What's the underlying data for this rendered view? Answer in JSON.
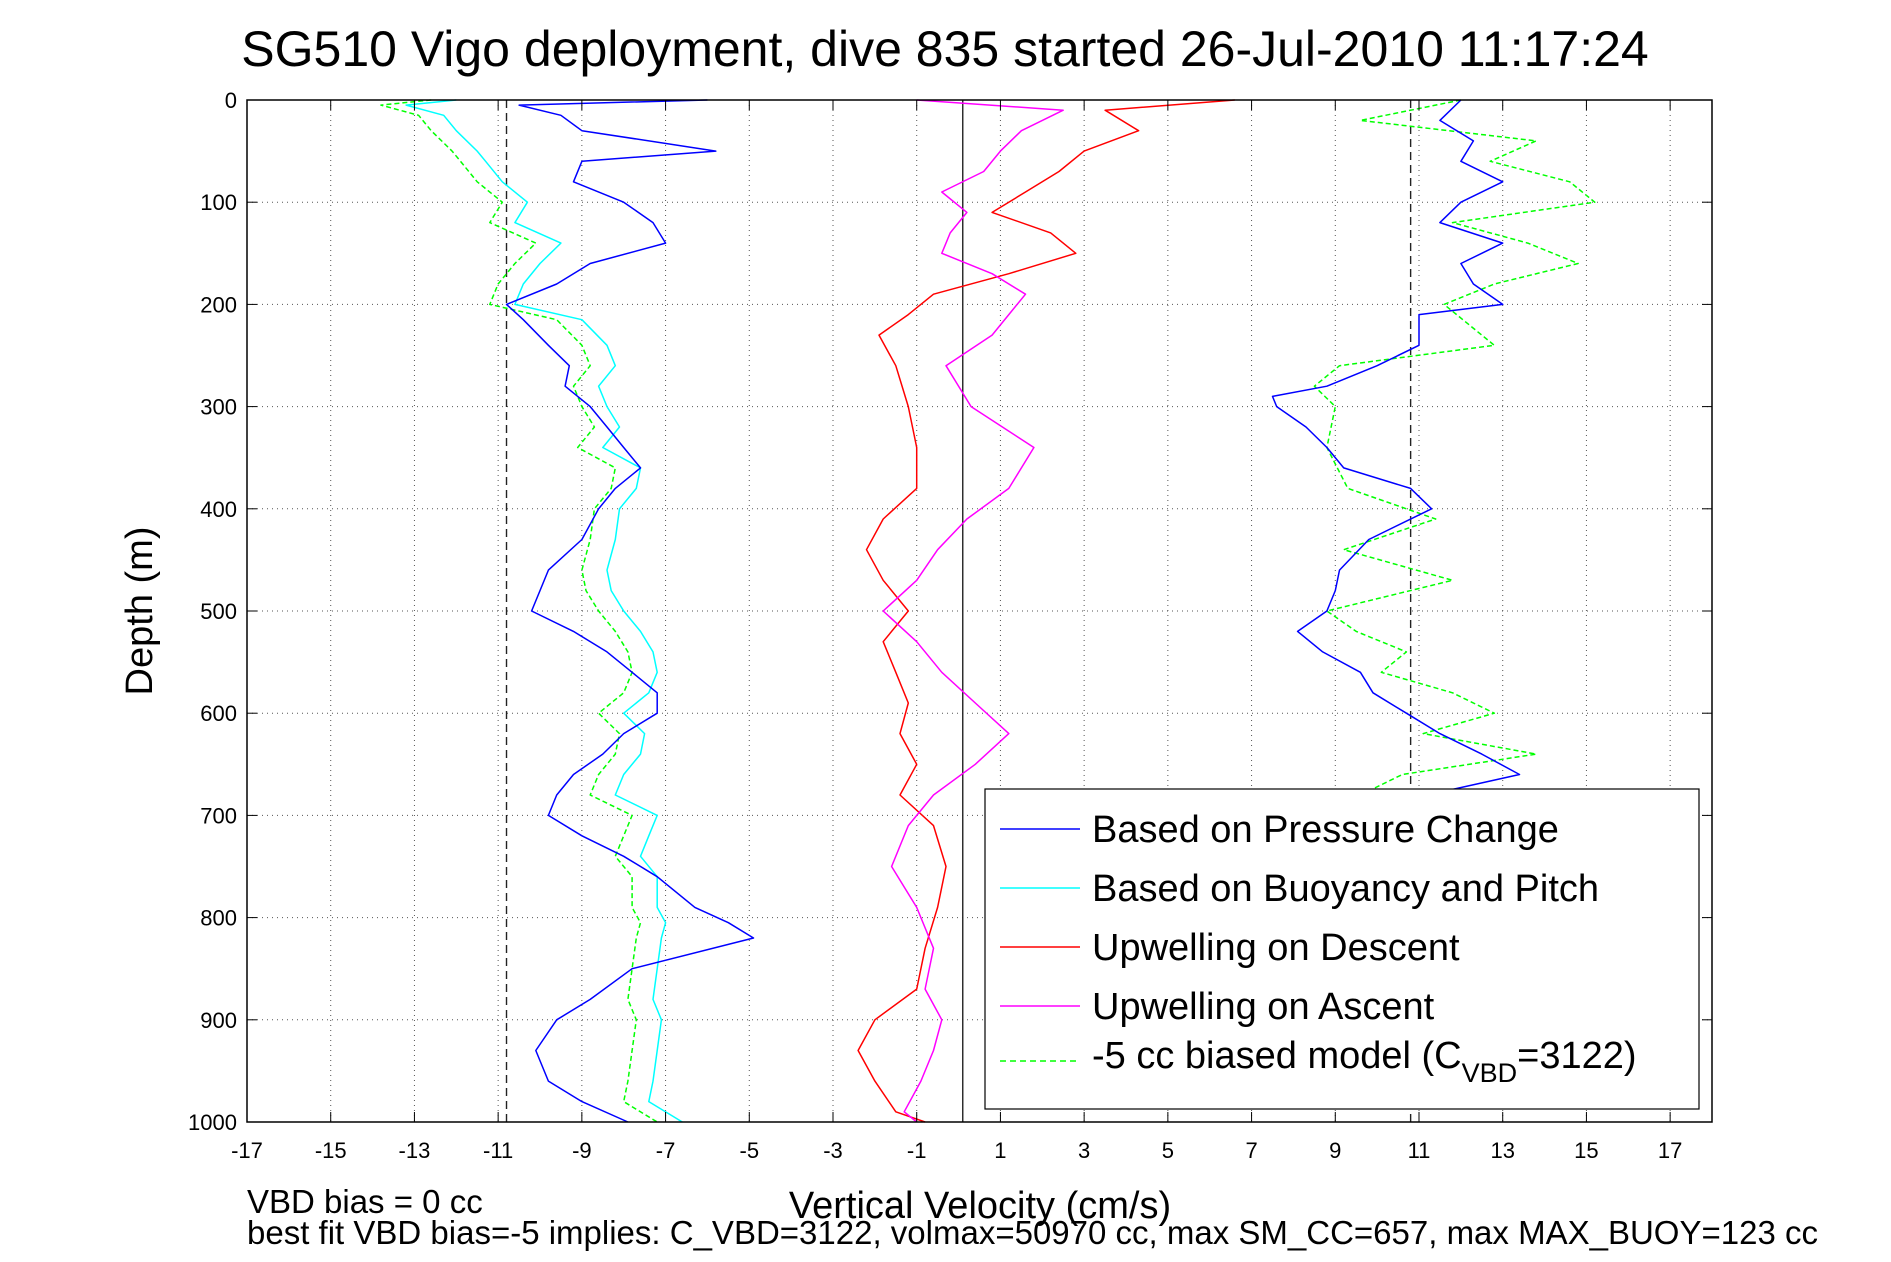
{
  "chart_data": {
    "type": "line",
    "title": "SG510 Vigo deployment, dive 835 started 26-Jul-2010 11:17:24",
    "xlabel": "Vertical Velocity (cm/s)",
    "ylabel": "Depth (m)",
    "xlim": [
      -17,
      18
    ],
    "ylim": [
      0,
      1000
    ],
    "y_reversed": true,
    "grid": true,
    "x_ticks": [
      -17,
      -15,
      -13,
      -11,
      -9,
      -7,
      -5,
      -3,
      -1,
      1,
      3,
      5,
      7,
      9,
      11,
      13,
      15,
      17
    ],
    "y_ticks": [
      0,
      100,
      200,
      300,
      400,
      500,
      600,
      700,
      800,
      900,
      1000
    ],
    "reference_lines": [
      {
        "x": -10.8,
        "style": "dashed"
      },
      {
        "x": 0.1,
        "style": "solid"
      },
      {
        "x": 10.8,
        "style": "dashed"
      }
    ],
    "legend_position": "bottom-right",
    "series": [
      {
        "name": "Based on Pressure Change",
        "color": "#0000ff",
        "style": "solid",
        "depth": [
          0,
          5,
          15,
          30,
          50,
          60,
          80,
          100,
          120,
          140,
          160,
          180,
          200,
          215,
          240,
          260,
          280,
          300,
          320,
          340,
          360,
          380,
          400,
          430,
          460,
          480,
          500,
          520,
          540,
          560,
          580,
          600,
          620,
          640,
          660,
          680,
          700,
          720,
          740,
          760,
          790,
          805,
          820,
          850,
          880,
          900,
          930,
          960,
          980,
          1000
        ],
        "velocity": [
          -6,
          -10.5,
          -9.5,
          -9,
          -5.8,
          -9,
          -9.2,
          -8,
          -7.3,
          -7,
          -8.8,
          -9.6,
          -10.8,
          -10.4,
          -9.8,
          -9.3,
          -9.4,
          -8.8,
          -8.4,
          -8,
          -7.6,
          -8.2,
          -8.6,
          -9,
          -9.8,
          -10,
          -10.2,
          -9.2,
          -8.4,
          -7.8,
          -7.2,
          -7.2,
          -8,
          -8.5,
          -9.2,
          -9.6,
          -9.8,
          -9,
          -8,
          -7.2,
          -6.3,
          -5.5,
          -4.9,
          -7.8,
          -8.8,
          -9.6,
          -10.1,
          -9.8,
          -9,
          -7.9
        ]
      },
      {
        "name": "Based on Buoyancy and Pitch",
        "color": "#00ffff",
        "style": "solid",
        "depth": [
          0,
          5,
          15,
          30,
          50,
          60,
          80,
          100,
          120,
          140,
          160,
          180,
          200,
          215,
          240,
          260,
          280,
          300,
          320,
          340,
          360,
          380,
          400,
          430,
          460,
          480,
          500,
          520,
          540,
          560,
          580,
          600,
          620,
          640,
          660,
          680,
          700,
          720,
          740,
          760,
          790,
          805,
          820,
          850,
          880,
          900,
          930,
          960,
          980,
          1000
        ],
        "velocity": [
          -12,
          -13.2,
          -12.3,
          -12,
          -11.5,
          -11.3,
          -10.9,
          -10.3,
          -10.6,
          -9.5,
          -10,
          -10.4,
          -10.6,
          -9,
          -8.4,
          -8.2,
          -8.6,
          -8.4,
          -8.1,
          -8.5,
          -7.6,
          -7.7,
          -8.1,
          -8.2,
          -8.4,
          -8.3,
          -8,
          -7.6,
          -7.3,
          -7.2,
          -7.4,
          -8,
          -7.5,
          -7.6,
          -8,
          -8.2,
          -7.2,
          -7.4,
          -7.6,
          -7.2,
          -7.2,
          -7,
          -7.1,
          -7.2,
          -7.3,
          -7.1,
          -7.2,
          -7.3,
          -7.4,
          -6.6
        ]
      },
      {
        "name": "Upwelling on Descent",
        "color": "#ff0000",
        "style": "solid",
        "depth": [
          0,
          10,
          30,
          50,
          70,
          90,
          110,
          130,
          150,
          170,
          190,
          210,
          230,
          260,
          300,
          340,
          380,
          410,
          440,
          470,
          500,
          530,
          560,
          590,
          620,
          650,
          680,
          710,
          750,
          790,
          830,
          870,
          900,
          930,
          960,
          990,
          1000
        ],
        "velocity": [
          6.6,
          3.5,
          4.3,
          3,
          2.4,
          1.6,
          0.8,
          2.2,
          2.8,
          1.2,
          -0.6,
          -1.2,
          -1.9,
          -1.5,
          -1.2,
          -1.0,
          -1.0,
          -1.8,
          -2.2,
          -1.8,
          -1.2,
          -1.8,
          -1.5,
          -1.2,
          -1.4,
          -1.0,
          -1.4,
          -0.6,
          -0.3,
          -0.5,
          -0.8,
          -1.0,
          -2.0,
          -2.4,
          -2.0,
          -1.5,
          -0.8
        ]
      },
      {
        "name": "Upwelling on Ascent",
        "color": "#ff00ff",
        "style": "solid",
        "depth": [
          0,
          10,
          30,
          50,
          70,
          90,
          110,
          130,
          150,
          170,
          190,
          210,
          230,
          260,
          300,
          340,
          380,
          410,
          440,
          470,
          500,
          530,
          560,
          590,
          620,
          650,
          680,
          710,
          750,
          790,
          830,
          870,
          900,
          930,
          960,
          990,
          1000
        ],
        "velocity": [
          -1.0,
          2.5,
          1.5,
          1.0,
          0.6,
          -0.4,
          0.2,
          -0.2,
          -0.4,
          0.8,
          1.6,
          1.2,
          0.8,
          -0.3,
          0.3,
          1.8,
          1.2,
          0.2,
          -0.5,
          -1.0,
          -1.8,
          -1.0,
          -0.4,
          0.4,
          1.2,
          0.4,
          -0.6,
          -1.2,
          -1.6,
          -1.0,
          -0.6,
          -0.8,
          -0.4,
          -0.6,
          -0.9,
          -1.3,
          -1.0
        ]
      },
      {
        "name": "-5 cc biased model (C_VBD=3122)",
        "color": "#00ff00",
        "style": "dashed",
        "depth": [
          0,
          5,
          15,
          30,
          50,
          60,
          80,
          100,
          120,
          140,
          160,
          180,
          200,
          215,
          240,
          260,
          280,
          300,
          320,
          340,
          360,
          380,
          400,
          430,
          460,
          480,
          500,
          520,
          540,
          560,
          580,
          600,
          620,
          640,
          660,
          680,
          700,
          720,
          740,
          760,
          790,
          805,
          820,
          850,
          880,
          900,
          930,
          960,
          980,
          1000
        ],
        "velocity": [
          -12.6,
          -13.8,
          -12.9,
          -12.6,
          -12.1,
          -11.9,
          -11.5,
          -10.9,
          -11.2,
          -10.1,
          -10.6,
          -11,
          -11.2,
          -9.6,
          -9,
          -8.8,
          -9.2,
          -9,
          -8.7,
          -9.1,
          -8.2,
          -8.3,
          -8.7,
          -8.8,
          -9,
          -8.9,
          -8.6,
          -8.2,
          -7.9,
          -7.8,
          -8,
          -8.6,
          -8.1,
          -8.2,
          -8.6,
          -8.8,
          -7.8,
          -8,
          -8.2,
          -7.8,
          -7.8,
          -7.6,
          -7.7,
          -7.8,
          -7.9,
          -7.7,
          -7.8,
          -7.9,
          -8,
          -7.2
        ]
      },
      {
        "name": "",
        "color": "#00ff00",
        "style": "dashed",
        "depth": [
          0,
          20,
          40,
          60,
          80,
          100,
          120,
          140,
          160,
          180,
          200,
          240,
          260,
          280,
          300,
          340,
          380,
          410,
          440,
          470,
          500,
          520,
          540,
          560,
          580,
          600,
          620,
          640,
          660,
          680,
          700
        ],
        "velocity": [
          12,
          9.6,
          13.8,
          12.7,
          14.6,
          15.2,
          11.8,
          13.6,
          14.8,
          12.8,
          11.6,
          12.8,
          9.1,
          8.5,
          9,
          8.8,
          9.3,
          11.4,
          9.2,
          11.8,
          8.8,
          9.5,
          10.7,
          10.1,
          11.8,
          12.8,
          11.1,
          13.8,
          10.6,
          9.6,
          9.6
        ]
      },
      {
        "name": "",
        "color": "#0000ff",
        "style": "solid",
        "depth": [
          0,
          20,
          40,
          60,
          80,
          100,
          120,
          140,
          160,
          180,
          200,
          210,
          240,
          260,
          280,
          290,
          300,
          320,
          340,
          360,
          380,
          400,
          430,
          460,
          480,
          500,
          520,
          540,
          560,
          580,
          600,
          620,
          640,
          660,
          680,
          700
        ],
        "velocity": [
          12,
          11.5,
          12.3,
          12.0,
          13.0,
          12.0,
          11.5,
          13.0,
          12.0,
          12.3,
          13.0,
          11.0,
          11.0,
          10.0,
          8.8,
          7.5,
          7.6,
          8.3,
          8.8,
          9.2,
          10.8,
          11.3,
          9.8,
          9.1,
          9.0,
          8.8,
          8.1,
          8.7,
          9.6,
          9.9,
          10.7,
          11.5,
          12.5,
          13.4,
          11.2,
          9.6
        ]
      }
    ]
  },
  "footnote_line1": "VBD bias = 0 cc",
  "footnote_line2": "best fit VBD bias=-5 implies: C_VBD=3122, volmax=50970 cc, max SM_CC=657, max MAX_BUOY=123 cc",
  "legend_sub_pre": "-5 cc biased model (C",
  "legend_sub_sub": "VBD",
  "legend_sub_post": "=3122)"
}
